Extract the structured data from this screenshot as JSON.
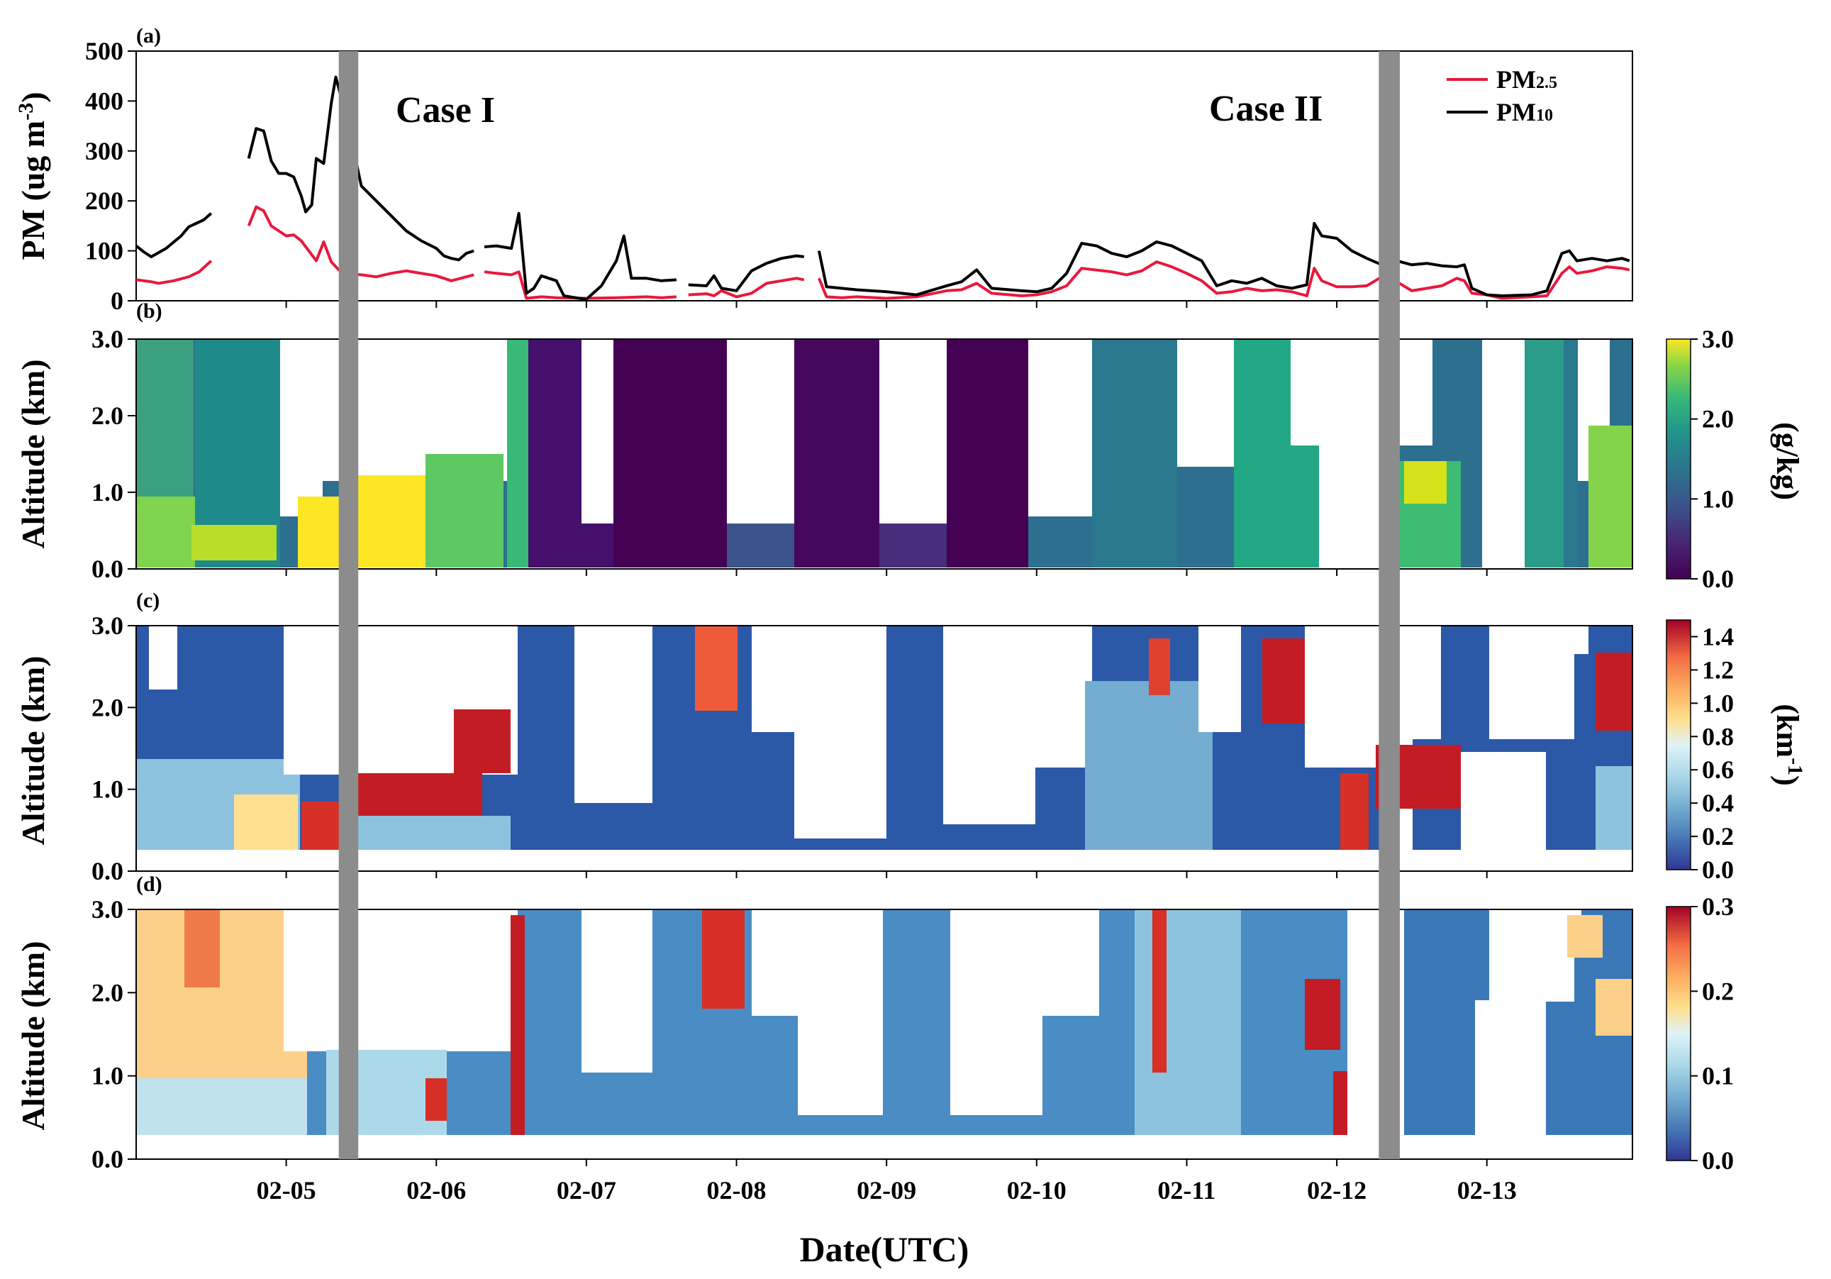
{
  "figure": {
    "x_title": "Date(UTC)",
    "x_ticks": [
      "02-05",
      "02-06",
      "02-07",
      "02-08",
      "02-09",
      "02-10",
      "02-11",
      "02-12",
      "02-13"
    ],
    "x_tick_days": [
      5,
      6,
      7,
      8,
      9,
      10,
      11,
      12,
      13
    ],
    "x_range": [
      4.0,
      13.97
    ],
    "highlight_bands": [
      [
        5.35,
        5.48
      ],
      [
        12.28,
        12.42
      ]
    ],
    "band_color": "#8c8c8c"
  },
  "chart_data": [
    {
      "type": "line",
      "panel": "(a)",
      "ylabel": "PM (ug m",
      "ylabel_sup": "-3",
      "ylabel_close": ")",
      "ylim": [
        0,
        500
      ],
      "yticks": [
        "0",
        "100",
        "200",
        "300",
        "400",
        "500"
      ],
      "annotations": [
        "Case I",
        "Case II"
      ],
      "legend_position": "top-right",
      "series": [
        {
          "name": "PM2.5",
          "legend_main": "PM",
          "legend_sub": "2.5",
          "color": "#e8193c",
          "segments": [
            [
              [
                4.0,
                42
              ],
              [
                4.1,
                38
              ],
              [
                4.15,
                35
              ],
              [
                4.25,
                40
              ],
              [
                4.35,
                48
              ],
              [
                4.42,
                58
              ],
              [
                4.5,
                80
              ]
            ],
            [
              [
                4.75,
                150
              ],
              [
                4.8,
                188
              ],
              [
                4.85,
                180
              ],
              [
                4.9,
                150
              ],
              [
                5.0,
                130
              ],
              [
                5.05,
                132
              ],
              [
                5.1,
                120
              ],
              [
                5.15,
                100
              ],
              [
                5.2,
                80
              ],
              [
                5.25,
                118
              ],
              [
                5.3,
                78
              ],
              [
                5.35,
                62
              ],
              [
                5.4,
                55
              ],
              [
                5.5,
                52
              ],
              [
                5.6,
                48
              ],
              [
                5.7,
                55
              ],
              [
                5.8,
                60
              ],
              [
                5.9,
                55
              ],
              [
                6.0,
                50
              ],
              [
                6.1,
                40
              ],
              [
                6.2,
                48
              ],
              [
                6.25,
                52
              ]
            ],
            [
              [
                6.32,
                58
              ],
              [
                6.4,
                55
              ],
              [
                6.5,
                52
              ],
              [
                6.55,
                58
              ],
              [
                6.6,
                5
              ],
              [
                6.7,
                8
              ],
              [
                6.8,
                6
              ],
              [
                7.0,
                5
              ],
              [
                7.2,
                6
              ],
              [
                7.4,
                8
              ],
              [
                7.5,
                6
              ],
              [
                7.6,
                8
              ]
            ],
            [
              [
                7.68,
                12
              ],
              [
                7.8,
                14
              ],
              [
                7.85,
                10
              ],
              [
                7.9,
                20
              ],
              [
                8.0,
                8
              ],
              [
                8.1,
                15
              ],
              [
                8.2,
                35
              ],
              [
                8.3,
                40
              ],
              [
                8.4,
                45
              ],
              [
                8.45,
                42
              ]
            ],
            [
              [
                8.55,
                45
              ],
              [
                8.6,
                8
              ],
              [
                8.7,
                6
              ],
              [
                8.8,
                8
              ],
              [
                9.0,
                5
              ],
              [
                9.2,
                8
              ],
              [
                9.4,
                20
              ],
              [
                9.5,
                22
              ],
              [
                9.6,
                35
              ],
              [
                9.7,
                15
              ],
              [
                9.9,
                10
              ],
              [
                10.0,
                12
              ],
              [
                10.1,
                18
              ],
              [
                10.2,
                30
              ],
              [
                10.3,
                65
              ],
              [
                10.5,
                58
              ],
              [
                10.6,
                52
              ],
              [
                10.7,
                60
              ],
              [
                10.8,
                78
              ],
              [
                10.9,
                68
              ],
              [
                11.0,
                55
              ],
              [
                11.1,
                40
              ],
              [
                11.2,
                15
              ],
              [
                11.3,
                18
              ],
              [
                11.4,
                25
              ],
              [
                11.5,
                20
              ],
              [
                11.6,
                22
              ],
              [
                11.7,
                18
              ],
              [
                11.8,
                10
              ],
              [
                11.85,
                65
              ],
              [
                11.9,
                40
              ],
              [
                12.0,
                28
              ],
              [
                12.1,
                28
              ],
              [
                12.2,
                30
              ],
              [
                12.3,
                48
              ],
              [
                12.35,
                30
              ],
              [
                12.4,
                38
              ],
              [
                12.5,
                20
              ],
              [
                12.6,
                25
              ],
              [
                12.7,
                30
              ],
              [
                12.8,
                45
              ],
              [
                12.85,
                40
              ],
              [
                12.9,
                15
              ],
              [
                13.0,
                12
              ],
              [
                13.1,
                5
              ],
              [
                13.3,
                8
              ],
              [
                13.4,
                10
              ],
              [
                13.5,
                55
              ],
              [
                13.55,
                68
              ],
              [
                13.6,
                55
              ],
              [
                13.7,
                60
              ],
              [
                13.8,
                68
              ],
              [
                13.9,
                65
              ],
              [
                13.95,
                62
              ]
            ]
          ]
        },
        {
          "name": "PM10",
          "legend_main": "PM",
          "legend_sub": "10",
          "color": "#000000",
          "segments": [
            [
              [
                4.0,
                110
              ],
              [
                4.05,
                98
              ],
              [
                4.1,
                88
              ],
              [
                4.2,
                105
              ],
              [
                4.3,
                130
              ],
              [
                4.35,
                148
              ],
              [
                4.45,
                162
              ],
              [
                4.5,
                175
              ]
            ],
            [
              [
                4.75,
                285
              ],
              [
                4.8,
                345
              ],
              [
                4.85,
                340
              ],
              [
                4.9,
                280
              ],
              [
                4.95,
                255
              ],
              [
                5.0,
                255
              ],
              [
                5.05,
                248
              ],
              [
                5.1,
                210
              ],
              [
                5.13,
                178
              ],
              [
                5.17,
                192
              ],
              [
                5.2,
                285
              ],
              [
                5.25,
                275
              ],
              [
                5.3,
                395
              ],
              [
                5.33,
                448
              ],
              [
                5.4,
                370
              ],
              [
                5.45,
                300
              ],
              [
                5.5,
                230
              ],
              [
                5.6,
                200
              ],
              [
                5.7,
                170
              ],
              [
                5.8,
                140
              ],
              [
                5.9,
                120
              ],
              [
                6.0,
                105
              ],
              [
                6.05,
                90
              ],
              [
                6.1,
                85
              ],
              [
                6.15,
                82
              ],
              [
                6.2,
                95
              ],
              [
                6.25,
                100
              ]
            ],
            [
              [
                6.32,
                108
              ],
              [
                6.4,
                110
              ],
              [
                6.5,
                105
              ],
              [
                6.55,
                175
              ],
              [
                6.6,
                15
              ],
              [
                6.65,
                25
              ],
              [
                6.7,
                50
              ],
              [
                6.8,
                40
              ],
              [
                6.85,
                10
              ],
              [
                6.95,
                5
              ],
              [
                7.0,
                3
              ],
              [
                7.1,
                30
              ],
              [
                7.2,
                80
              ],
              [
                7.25,
                130
              ],
              [
                7.3,
                45
              ],
              [
                7.4,
                45
              ],
              [
                7.5,
                40
              ],
              [
                7.6,
                42
              ]
            ],
            [
              [
                7.68,
                32
              ],
              [
                7.8,
                30
              ],
              [
                7.85,
                50
              ],
              [
                7.9,
                25
              ],
              [
                8.0,
                20
              ],
              [
                8.1,
                60
              ],
              [
                8.2,
                75
              ],
              [
                8.3,
                85
              ],
              [
                8.4,
                90
              ],
              [
                8.45,
                88
              ]
            ],
            [
              [
                8.55,
                100
              ],
              [
                8.6,
                28
              ],
              [
                8.7,
                25
              ],
              [
                8.8,
                22
              ],
              [
                9.0,
                18
              ],
              [
                9.2,
                12
              ],
              [
                9.4,
                30
              ],
              [
                9.5,
                38
              ],
              [
                9.6,
                62
              ],
              [
                9.7,
                25
              ],
              [
                9.9,
                20
              ],
              [
                10.0,
                18
              ],
              [
                10.1,
                25
              ],
              [
                10.2,
                55
              ],
              [
                10.3,
                115
              ],
              [
                10.4,
                110
              ],
              [
                10.5,
                95
              ],
              [
                10.6,
                88
              ],
              [
                10.7,
                100
              ],
              [
                10.8,
                118
              ],
              [
                10.9,
                110
              ],
              [
                11.0,
                95
              ],
              [
                11.1,
                80
              ],
              [
                11.2,
                30
              ],
              [
                11.3,
                40
              ],
              [
                11.4,
                35
              ],
              [
                11.5,
                45
              ],
              [
                11.6,
                30
              ],
              [
                11.7,
                25
              ],
              [
                11.8,
                32
              ],
              [
                11.85,
                155
              ],
              [
                11.9,
                130
              ],
              [
                12.0,
                125
              ],
              [
                12.1,
                100
              ],
              [
                12.2,
                85
              ],
              [
                12.3,
                72
              ],
              [
                12.35,
                90
              ],
              [
                12.4,
                80
              ],
              [
                12.5,
                72
              ],
              [
                12.6,
                75
              ],
              [
                12.7,
                70
              ],
              [
                12.8,
                68
              ],
              [
                12.85,
                72
              ],
              [
                12.9,
                25
              ],
              [
                13.0,
                12
              ],
              [
                13.1,
                10
              ],
              [
                13.3,
                12
              ],
              [
                13.4,
                20
              ],
              [
                13.5,
                95
              ],
              [
                13.55,
                100
              ],
              [
                13.6,
                80
              ],
              [
                13.7,
                85
              ],
              [
                13.8,
                80
              ],
              [
                13.9,
                85
              ],
              [
                13.95,
                80
              ]
            ]
          ]
        }
      ]
    },
    {
      "type": "heatmap",
      "panel": "(b)",
      "ylabel": "Altitude (km)",
      "ylim": [
        0.0,
        3.0
      ],
      "yticks": [
        "0.0",
        "1.0",
        "2.0",
        "3.0"
      ],
      "colorbar_label": "(g/kg)",
      "colorbar_range": [
        0.0,
        3.0
      ],
      "colorbar_ticks": [
        "0.0",
        "1.0",
        "2.0",
        "3.0"
      ],
      "colormap": "viridis"
    },
    {
      "type": "heatmap",
      "panel": "(c)",
      "ylabel": "Altitude (km)",
      "ylim": [
        0.0,
        3.0
      ],
      "yticks": [
        "0.0",
        "1.0",
        "2.0",
        "3.0"
      ],
      "colorbar_label": "(km",
      "colorbar_label_sup": "-1",
      "colorbar_label_close": ")",
      "colorbar_range": [
        0.0,
        1.5
      ],
      "colorbar_ticks": [
        "0.0",
        "0.2",
        "0.4",
        "0.6",
        "0.8",
        "1.0",
        "1.2",
        "1.4"
      ],
      "colormap": "RdYlBu_r"
    },
    {
      "type": "heatmap",
      "panel": "(d)",
      "ylabel": "Altitude (km)",
      "ylim": [
        0.0,
        3.0
      ],
      "yticks": [
        "0.0",
        "1.0",
        "2.0",
        "3.0"
      ],
      "colorbar_range": [
        0.0,
        0.3
      ],
      "colorbar_ticks": [
        "0.0",
        "0.1",
        "0.2",
        "0.3"
      ],
      "colormap": "RdYlBu_r"
    }
  ]
}
